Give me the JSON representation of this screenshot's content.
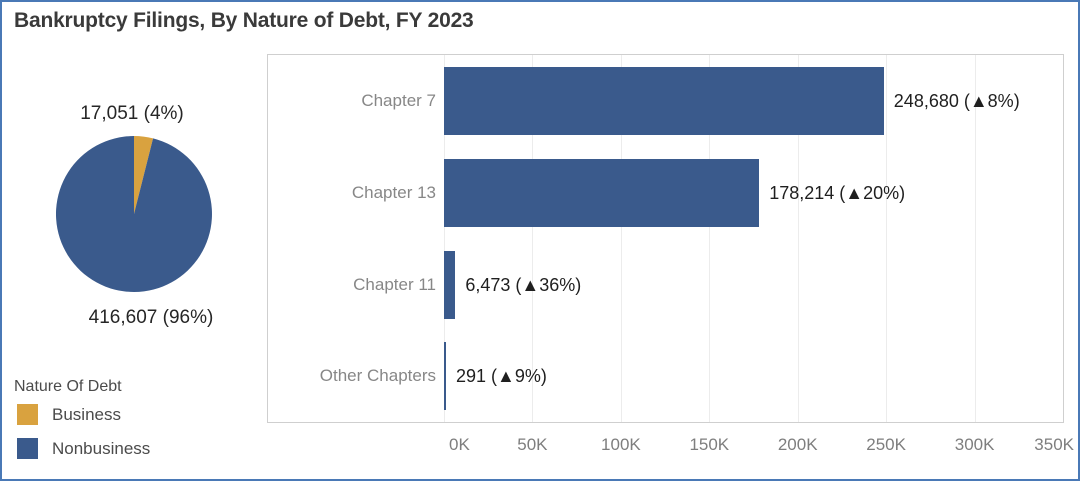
{
  "title": "Bankruptcy Filings, By Nature of Debt, FY 2023",
  "colors": {
    "frame_border": "#4a79b6",
    "business": "#d9a23f",
    "nonbusiness": "#3a5a8c",
    "grid": "#ececec",
    "axis_text": "#7e7e7e",
    "value_text": "#1f1f1f"
  },
  "legend": {
    "title": "Nature Of Debt",
    "items": [
      {
        "label": "Business",
        "color": "#d9a23f"
      },
      {
        "label": "Nonbusiness",
        "color": "#3a5a8c"
      }
    ]
  },
  "chart_data": [
    {
      "type": "pie",
      "series_name": "Nature Of Debt",
      "labels": [
        "Business",
        "Nonbusiness"
      ],
      "values": [
        17051,
        416607
      ],
      "percents": [
        4,
        96
      ],
      "data_labels": [
        "17,051 (4%)",
        "416,607 (96%)"
      ],
      "colors": [
        "#d9a23f",
        "#3a5a8c"
      ],
      "start_angle_deg": 0,
      "direction": "clockwise"
    },
    {
      "type": "bar",
      "orientation": "horizontal",
      "title": "",
      "xlabel": "",
      "ylabel": "",
      "categories": [
        "Chapter 7",
        "Chapter 13",
        "Chapter 11",
        "Other Chapters"
      ],
      "values": [
        248680,
        178214,
        6473,
        291
      ],
      "value_labels": [
        "248,680 (▲8%)",
        "178,214 (▲20%)",
        "6,473 (▲36%)",
        "291 (▲9%)"
      ],
      "bar_color": "#3a5a8c",
      "xlim": [
        0,
        350000
      ],
      "x_ticks": [
        {
          "value": 0,
          "label": "0K"
        },
        {
          "value": 50000,
          "label": "50K"
        },
        {
          "value": 100000,
          "label": "100K"
        },
        {
          "value": 150000,
          "label": "150K"
        },
        {
          "value": 200000,
          "label": "200K"
        },
        {
          "value": 250000,
          "label": "250K"
        },
        {
          "value": 300000,
          "label": "300K"
        },
        {
          "value": 350000,
          "label": "350K"
        }
      ],
      "grid": true,
      "legend_position": "none"
    }
  ]
}
